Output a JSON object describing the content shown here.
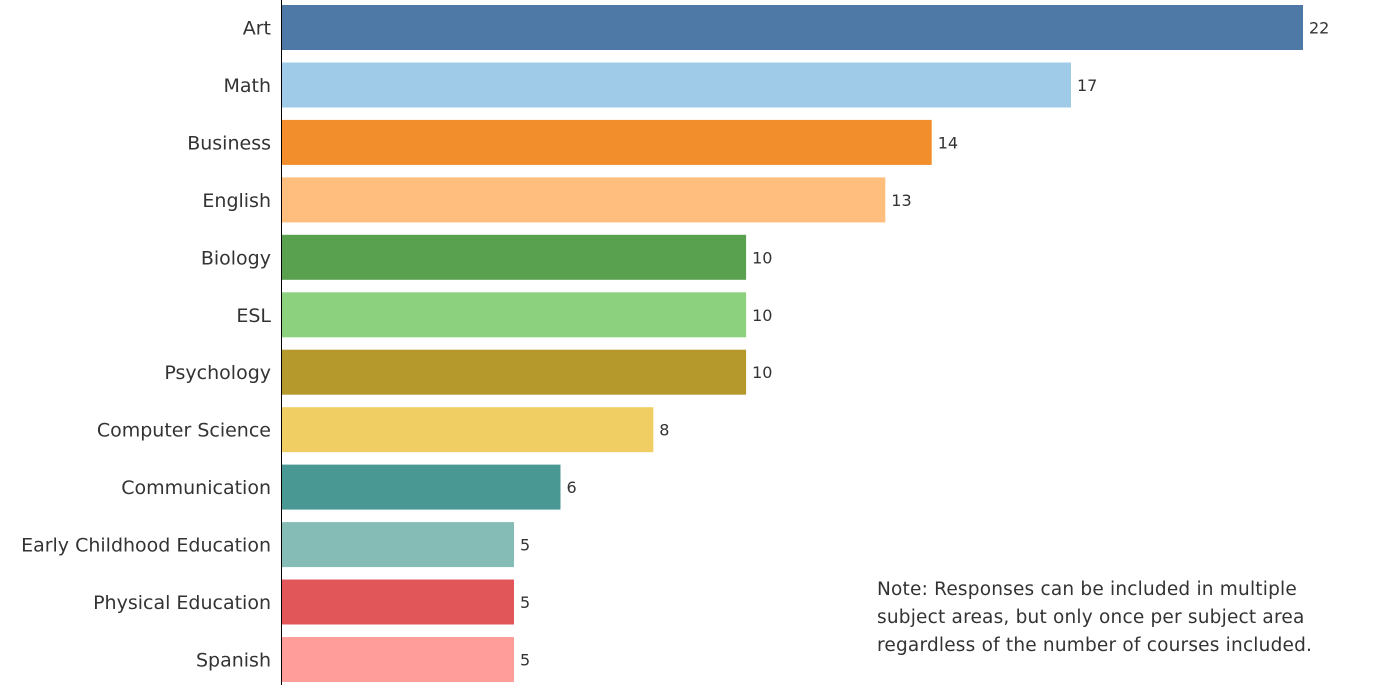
{
  "chart_data": {
    "type": "bar",
    "orientation": "horizontal",
    "categories": [
      "Art",
      "Math",
      "Business",
      "English",
      "Biology",
      "ESL",
      "Psychology",
      "Computer Science",
      "Communication",
      "Early Childhood Education",
      "Physical Education",
      "Spanish"
    ],
    "values": [
      22,
      17,
      14,
      13,
      10,
      10,
      10,
      8,
      6,
      5,
      5,
      5
    ],
    "colors": [
      "#4e79a7",
      "#a0cbe8",
      "#f28e2b",
      "#ffbe7d",
      "#59a14f",
      "#8cd17d",
      "#b6992d",
      "#f1ce63",
      "#499894",
      "#86bcb6",
      "#e15759",
      "#ff9d9a"
    ],
    "xlim": [
      0,
      22
    ],
    "grid": false,
    "data_labels": true
  },
  "note": {
    "lines": [
      "Note: Responses can be included in multiple",
      "subject areas, but only once per subject area",
      "regardless of the number of courses included."
    ]
  }
}
